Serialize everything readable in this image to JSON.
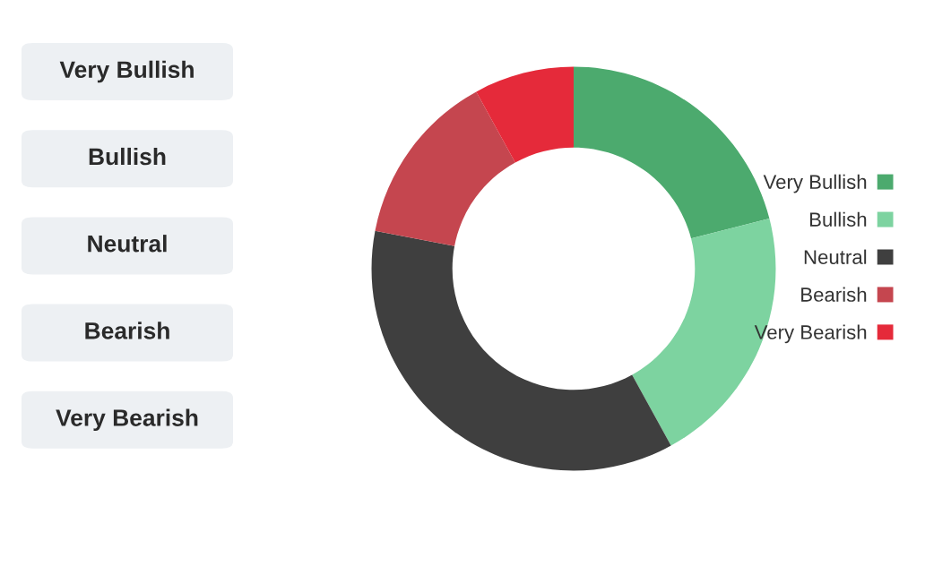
{
  "chart_data": {
    "type": "donut",
    "categories": [
      "Very Bullish",
      "Bullish",
      "Neutral",
      "Bearish",
      "Very Bearish"
    ],
    "values": [
      21,
      21,
      36,
      14,
      8
    ],
    "colors": [
      "#4caa6e",
      "#7dd3a0",
      "#3f3f3f",
      "#c5464f",
      "#e52a3a"
    ],
    "legend": "right",
    "annotations": [
      "Very Bullish",
      "Bullish",
      "Neutral",
      "Bearish",
      "Very Bearish"
    ]
  }
}
